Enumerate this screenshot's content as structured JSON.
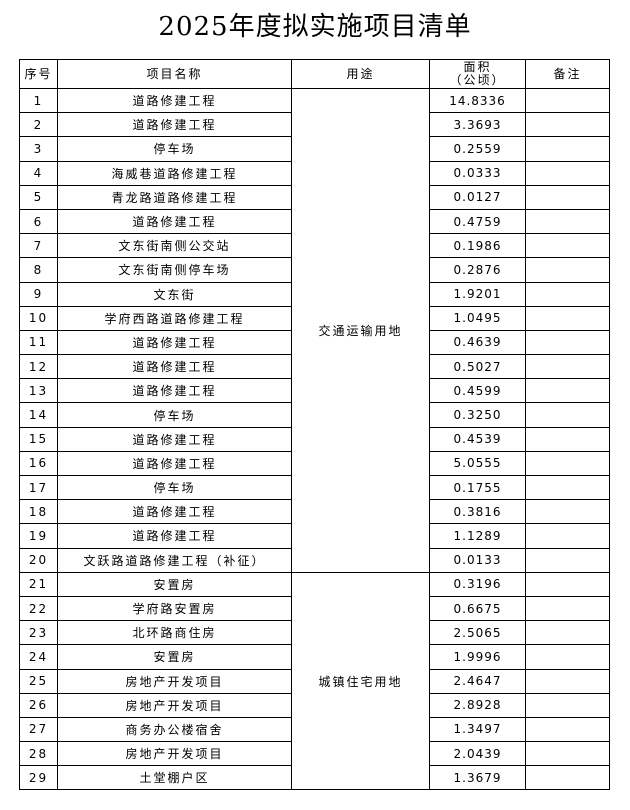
{
  "title": "2025年度拟实施项目清单",
  "headers": {
    "no": "序号",
    "name": "项目名称",
    "use": "用途",
    "area": "面积",
    "area_unit": "（公顷）",
    "note": "备注"
  },
  "groups": [
    {
      "use": "交通运输用地",
      "rows": [
        [
          "1",
          "道路修建工程",
          "14.8336"
        ],
        [
          "2",
          "道路修建工程",
          "3.3693"
        ],
        [
          "3",
          "停车场",
          "0.2559"
        ],
        [
          "4",
          "海威巷道路修建工程",
          "0.0333"
        ],
        [
          "5",
          "青龙路道路修建工程",
          "0.0127"
        ],
        [
          "6",
          "道路修建工程",
          "0.4759"
        ],
        [
          "7",
          "文东街南侧公交站",
          "0.1986"
        ],
        [
          "8",
          "文东街南侧停车场",
          "0.2876"
        ],
        [
          "9",
          "文东街",
          "1.9201"
        ],
        [
          "10",
          "学府西路道路修建工程",
          "1.0495"
        ],
        [
          "11",
          "道路修建工程",
          "0.4639"
        ],
        [
          "12",
          "道路修建工程",
          "0.5027"
        ],
        [
          "13",
          "道路修建工程",
          "0.4599"
        ],
        [
          "14",
          "停车场",
          "0.3250"
        ],
        [
          "15",
          "道路修建工程",
          "0.4539"
        ],
        [
          "16",
          "道路修建工程",
          "5.0555"
        ],
        [
          "17",
          "停车场",
          "0.1755"
        ],
        [
          "18",
          "道路修建工程",
          "0.3816"
        ],
        [
          "19",
          "道路修建工程",
          "1.1289"
        ],
        [
          "20",
          "文跃路道路修建工程（补征）",
          "0.0133"
        ]
      ]
    },
    {
      "use": "城镇住宅用地",
      "rows": [
        [
          "21",
          "安置房",
          "0.3196"
        ],
        [
          "22",
          "学府路安置房",
          "0.6675"
        ],
        [
          "23",
          "北环路商住房",
          "2.5065"
        ],
        [
          "24",
          "安置房",
          "1.9996"
        ],
        [
          "25",
          "房地产开发项目",
          "2.4647"
        ],
        [
          "26",
          "房地产开发项目",
          "2.8928"
        ],
        [
          "27",
          "商务办公楼宿舍",
          "1.3497"
        ],
        [
          "28",
          "房地产开发项目",
          "2.0439"
        ],
        [
          "29",
          "土堂棚户区",
          "1.3679"
        ]
      ]
    }
  ]
}
